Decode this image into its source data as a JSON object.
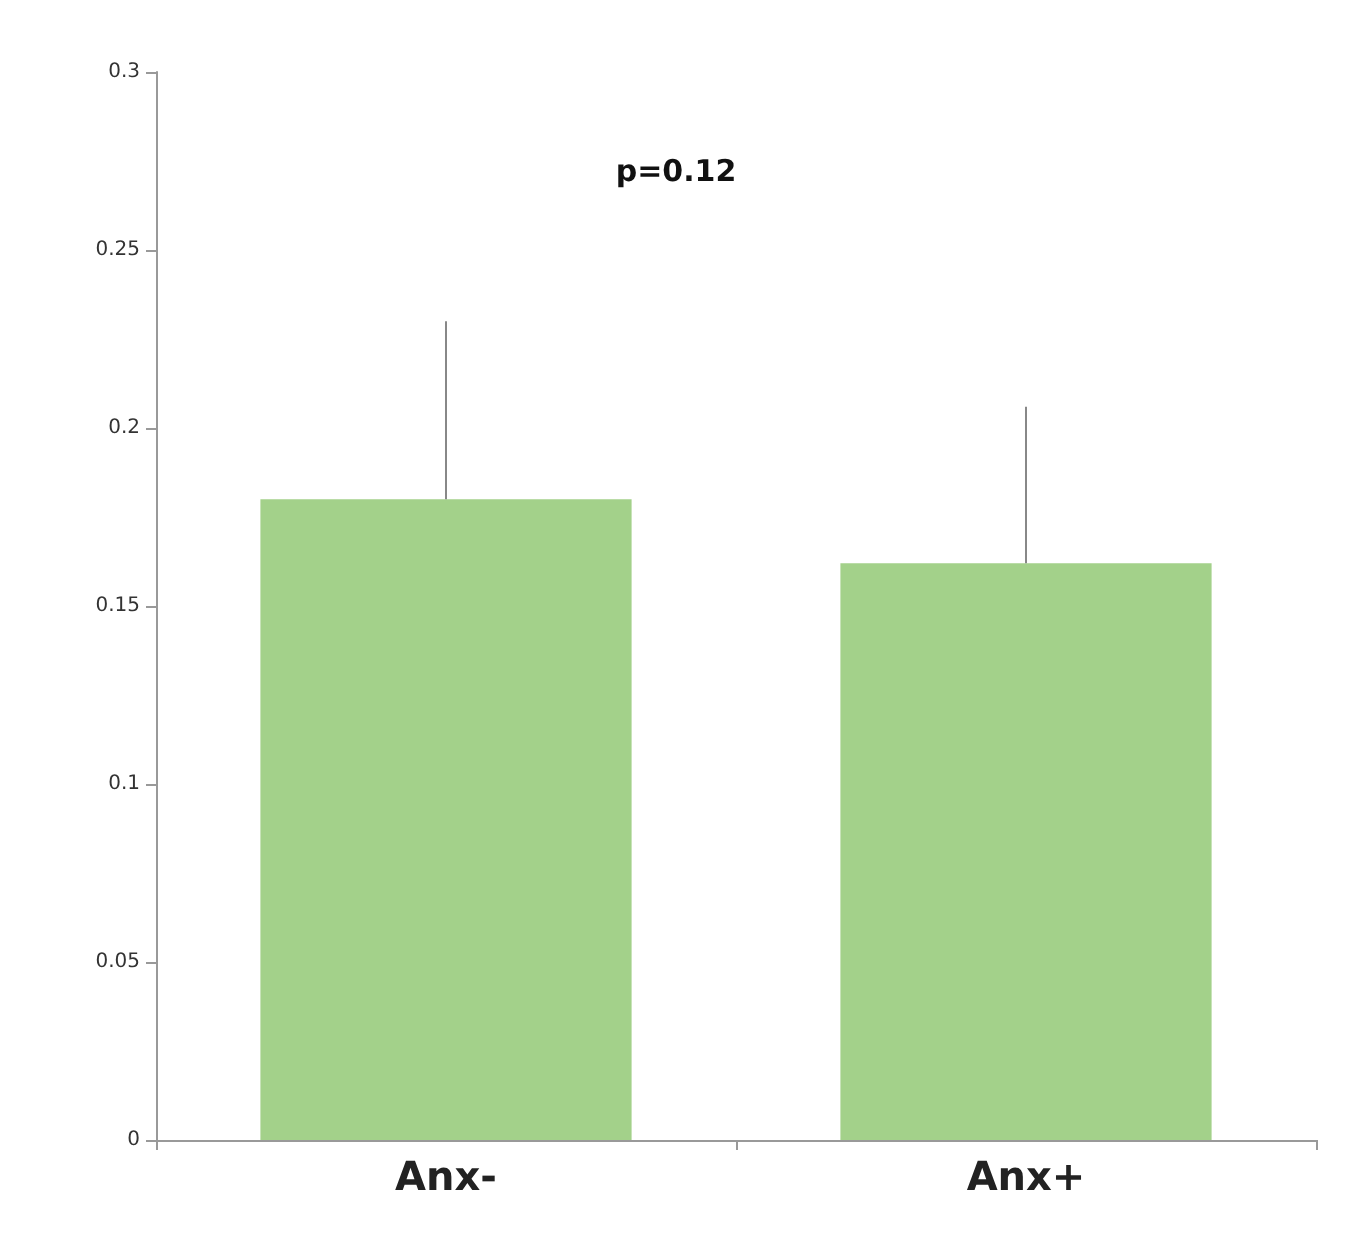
{
  "chart_data": {
    "type": "bar",
    "categories": [
      "Anx-",
      "Anx+"
    ],
    "values": [
      0.18,
      0.162
    ],
    "color": "#a3d18a",
    "errors": [
      [
        0.18,
        0.23
      ],
      [
        0.162,
        0.206
      ]
    ],
    "ylim": [
      0,
      0.3
    ],
    "yticks": [
      0,
      0.05,
      0.1,
      0.15,
      0.2,
      0.25,
      0.3
    ],
    "grid": false,
    "annotations": [
      "p=0.12"
    ]
  }
}
